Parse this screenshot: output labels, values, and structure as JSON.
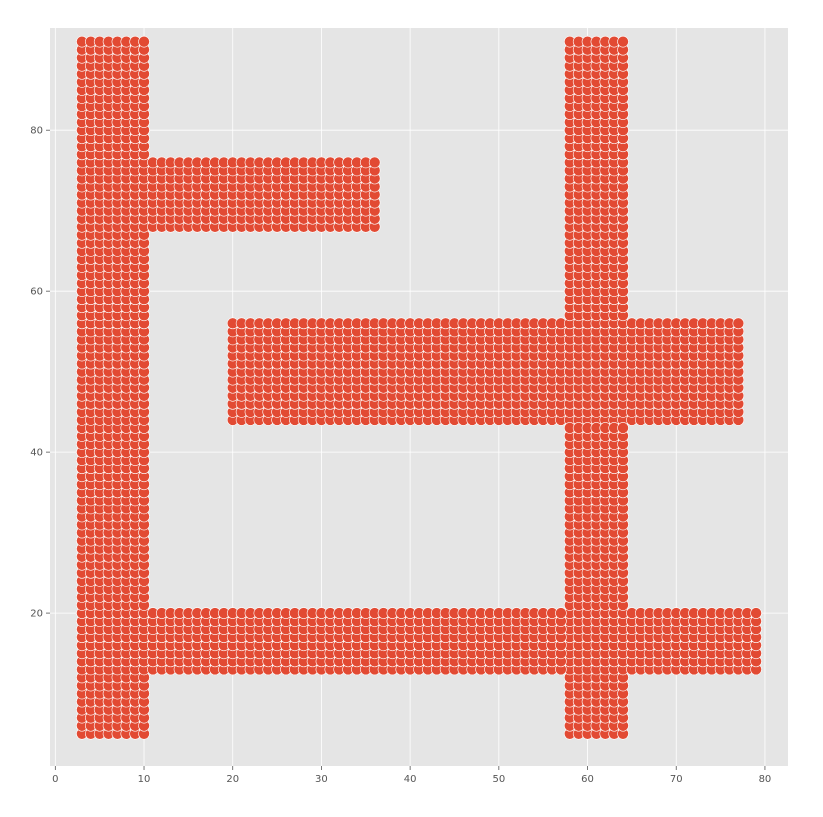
{
  "chart_data": {
    "type": "scatter",
    "title": "",
    "xlabel": "",
    "ylabel": "",
    "xlim": [
      -0.6,
      82.6
    ],
    "ylim": [
      1,
      92.7
    ],
    "x_ticks": [
      0,
      10,
      20,
      30,
      40,
      50,
      60,
      70,
      80
    ],
    "y_ticks": [
      20,
      40,
      60,
      80
    ],
    "x_tick_labels": [
      "0",
      "10",
      "20",
      "30",
      "40",
      "50",
      "60",
      "70",
      "80"
    ],
    "y_tick_labels": [
      "20",
      "40",
      "60",
      "80"
    ],
    "grid": true,
    "style": "ggplot",
    "marker_color": "#e24a33",
    "marker_edge_color": "#ffffff",
    "axes_background": "#e5e5e5",
    "grid_color": "#ffffff",
    "point_spacing": 1,
    "regions": [
      {
        "x_range": [
          3,
          10
        ],
        "y_range": [
          5,
          91
        ]
      },
      {
        "x_range": [
          11,
          36
        ],
        "y_range": [
          68,
          76
        ]
      },
      {
        "x_range": [
          20,
          77
        ],
        "y_range": [
          44,
          56
        ]
      },
      {
        "x_range": [
          58,
          64
        ],
        "y_range": [
          5,
          91
        ]
      },
      {
        "x_range": [
          11,
          79
        ],
        "y_range": [
          13,
          20
        ]
      }
    ]
  }
}
